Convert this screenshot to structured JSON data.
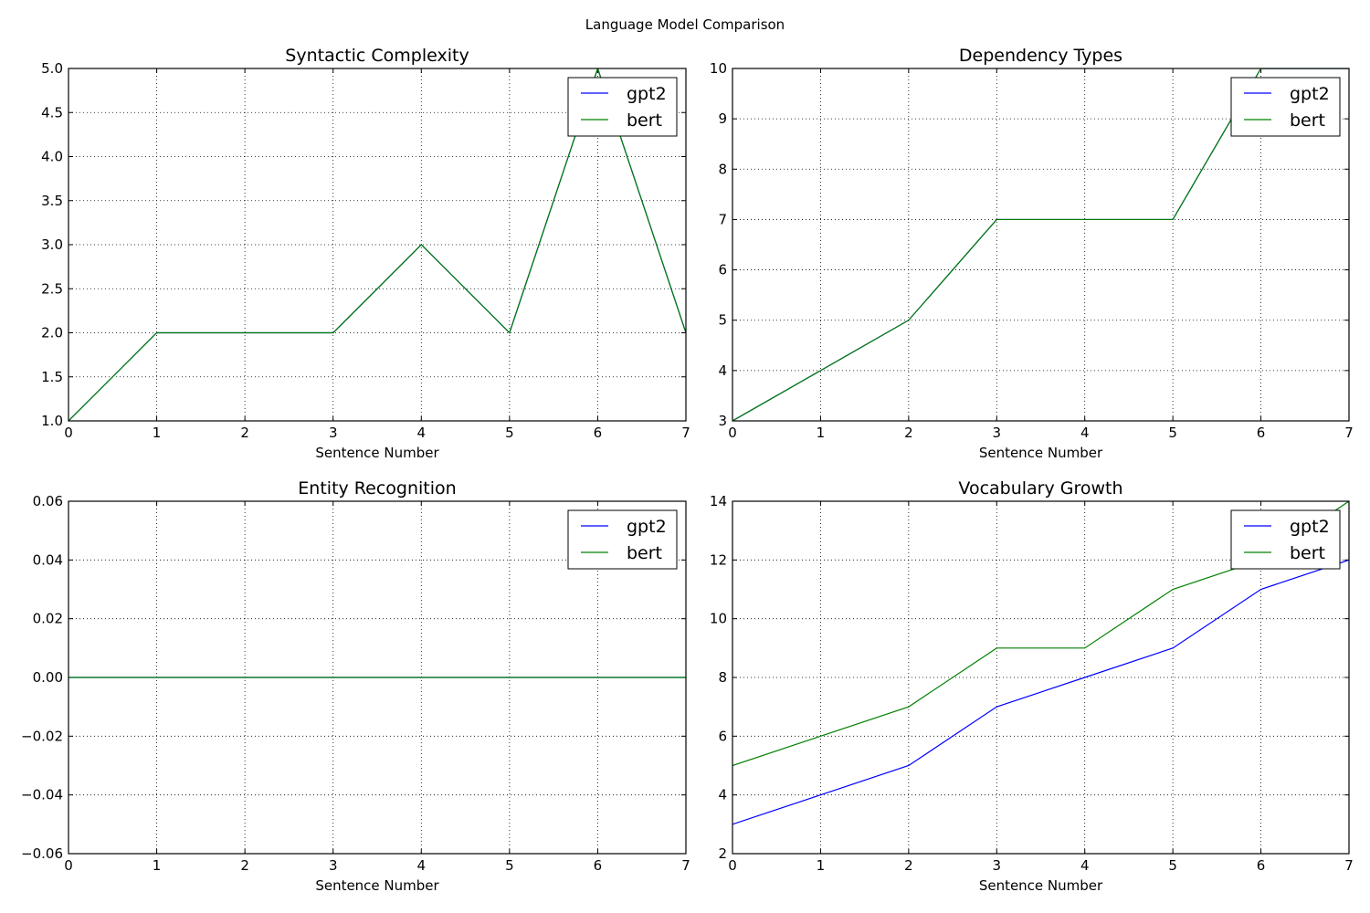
{
  "figure": {
    "title": "Language Model Comparison"
  },
  "chart_data": [
    {
      "type": "line",
      "title": "Syntactic Complexity",
      "xlabel": "Sentence Number",
      "ylabel": "",
      "xlim": [
        0,
        7
      ],
      "ylim": [
        1.0,
        5.0
      ],
      "xticks": [
        "0",
        "1",
        "2",
        "3",
        "4",
        "5",
        "6",
        "7"
      ],
      "yticks": [
        "1.0",
        "1.5",
        "2.0",
        "2.5",
        "3.0",
        "3.5",
        "4.0",
        "4.5",
        "5.0"
      ],
      "x": [
        0,
        1,
        2,
        3,
        4,
        5,
        6,
        7
      ],
      "series": [
        {
          "name": "gpt2",
          "color": "#0000ff",
          "values": [
            1,
            2,
            2,
            2,
            3,
            2,
            5,
            2
          ]
        },
        {
          "name": "bert",
          "color": "#008000",
          "values": [
            1,
            2,
            2,
            2,
            3,
            2,
            5,
            2
          ]
        }
      ],
      "grid": true,
      "legend": "upper right"
    },
    {
      "type": "line",
      "title": "Dependency Types",
      "xlabel": "Sentence Number",
      "ylabel": "",
      "xlim": [
        0,
        7
      ],
      "ylim": [
        3,
        10
      ],
      "xticks": [
        "0",
        "1",
        "2",
        "3",
        "4",
        "5",
        "6",
        "7"
      ],
      "yticks": [
        "3",
        "4",
        "5",
        "6",
        "7",
        "8",
        "9",
        "10"
      ],
      "x": [
        0,
        1,
        2,
        3,
        4,
        5,
        6,
        7
      ],
      "series": [
        {
          "name": "gpt2",
          "color": "#0000ff",
          "values": [
            3,
            4,
            5,
            7,
            7,
            7,
            10,
            10
          ]
        },
        {
          "name": "bert",
          "color": "#008000",
          "values": [
            3,
            4,
            5,
            7,
            7,
            7,
            10,
            10
          ]
        }
      ],
      "grid": true,
      "legend": "upper right"
    },
    {
      "type": "line",
      "title": "Entity Recognition",
      "xlabel": "Sentence Number",
      "ylabel": "",
      "xlim": [
        0,
        7
      ],
      "ylim": [
        -0.06,
        0.06
      ],
      "xticks": [
        "0",
        "1",
        "2",
        "3",
        "4",
        "5",
        "6",
        "7"
      ],
      "yticks": [
        "−0.06",
        "−0.04",
        "−0.02",
        "0.00",
        "0.02",
        "0.04",
        "0.06"
      ],
      "x": [
        0,
        1,
        2,
        3,
        4,
        5,
        6,
        7
      ],
      "series": [
        {
          "name": "gpt2",
          "color": "#0000ff",
          "values": [
            0,
            0,
            0,
            0,
            0,
            0,
            0,
            0
          ]
        },
        {
          "name": "bert",
          "color": "#008000",
          "values": [
            0,
            0,
            0,
            0,
            0,
            0,
            0,
            0
          ]
        }
      ],
      "grid": true,
      "legend": "upper right"
    },
    {
      "type": "line",
      "title": "Vocabulary Growth",
      "xlabel": "Sentence Number",
      "ylabel": "",
      "xlim": [
        0,
        7
      ],
      "ylim": [
        2,
        14
      ],
      "xticks": [
        "0",
        "1",
        "2",
        "3",
        "4",
        "5",
        "6",
        "7"
      ],
      "yticks": [
        "2",
        "4",
        "6",
        "8",
        "10",
        "12",
        "14"
      ],
      "x": [
        0,
        1,
        2,
        3,
        4,
        5,
        6,
        7
      ],
      "series": [
        {
          "name": "gpt2",
          "color": "#0000ff",
          "values": [
            3,
            4,
            5,
            7,
            8,
            9,
            11,
            12
          ]
        },
        {
          "name": "bert",
          "color": "#008000",
          "values": [
            5,
            6,
            7,
            9,
            9,
            11,
            12,
            14
          ]
        }
      ],
      "grid": true,
      "legend": "upper right"
    }
  ]
}
